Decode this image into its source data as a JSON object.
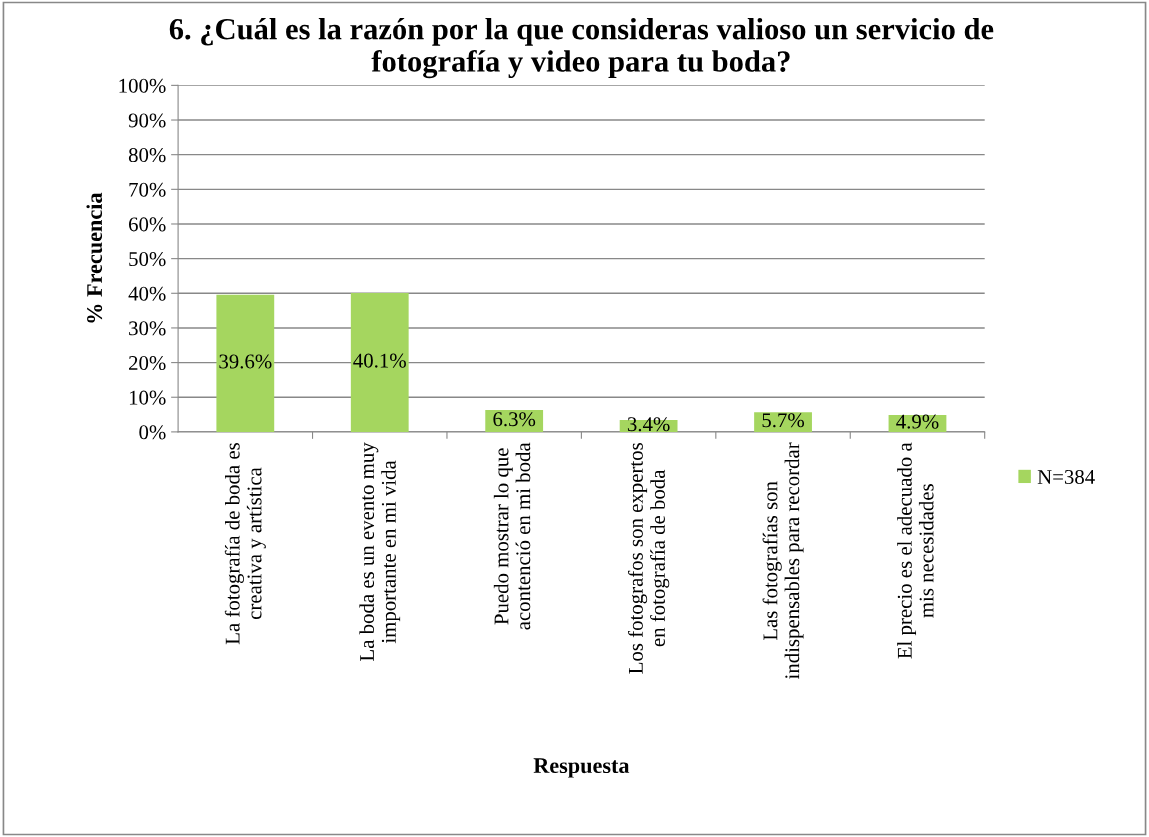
{
  "chart_data": {
    "type": "bar",
    "title": "6. ¿Cuál es la razón por la que consideras valioso un servicio de\nfotografía y video para tu boda?",
    "xlabel": "Respuesta",
    "ylabel": "% Frecuencia",
    "categories": [
      "La fotografía de boda es\ncreativa y artística",
      "La boda es un evento muy\nimportante en mi vida",
      "Puedo mostrar lo que\nacontenció en mi boda",
      "Los fotografos son expertos\nen fotografía de boda",
      "Las fotografías son\nindispensables para recordar",
      "El precio es el adecuado a\nmis necesidades"
    ],
    "series": [
      {
        "name": "N=384",
        "color": "#a5d65f",
        "values": [
          39.6,
          40.1,
          6.3,
          3.4,
          5.7,
          4.9
        ],
        "value_labels": [
          "39.6%",
          "40.1%",
          "6.3%",
          "3.4%",
          "5.7%",
          "4.9%"
        ]
      }
    ],
    "ylim": [
      0,
      100
    ],
    "yticks": [
      {
        "value": 0,
        "label": "0%"
      },
      {
        "value": 10,
        "label": "10%"
      },
      {
        "value": 20,
        "label": "20%"
      },
      {
        "value": 30,
        "label": "30%"
      },
      {
        "value": 40,
        "label": "40%"
      },
      {
        "value": 50,
        "label": "50%"
      },
      {
        "value": 60,
        "label": "60%"
      },
      {
        "value": 70,
        "label": "70%"
      },
      {
        "value": 80,
        "label": "80%"
      },
      {
        "value": 90,
        "label": "90%"
      },
      {
        "value": 100,
        "label": "100%"
      }
    ],
    "grid": "y",
    "legend": "right"
  }
}
